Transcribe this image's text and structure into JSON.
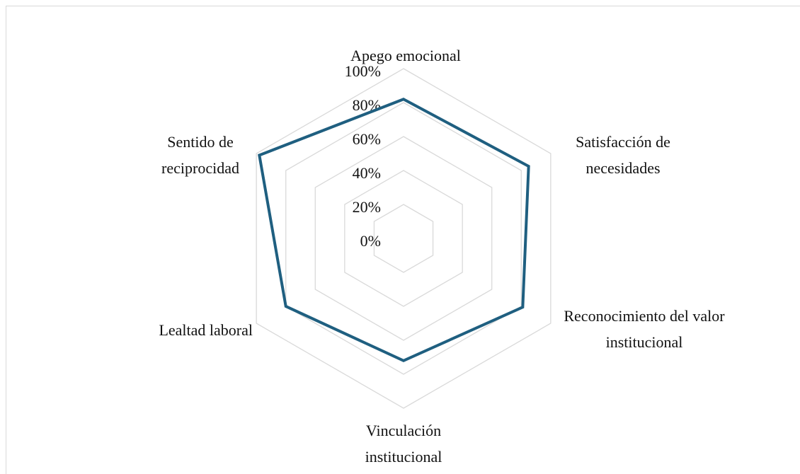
{
  "chart_data": {
    "type": "radar",
    "categories": [
      "Apego emocional",
      "Satisfacción de necesidades",
      "Reconocimiento del valor institucional",
      "Vinculación institucional",
      "Lealtad laboral",
      "Sentido de reciprocidad"
    ],
    "series": [
      {
        "color": "#1f5f80",
        "values": [
          82,
          85,
          81,
          72,
          80,
          98
        ]
      }
    ],
    "ylim": [
      0,
      100
    ],
    "yticks": [
      {
        "value": 0,
        "label": "0%"
      },
      {
        "value": 20,
        "label": "20%"
      },
      {
        "value": 40,
        "label": "40%"
      },
      {
        "value": 60,
        "label": "60%"
      },
      {
        "value": 80,
        "label": "80%"
      },
      {
        "value": 100,
        "label": "100%"
      }
    ],
    "grid": true
  }
}
